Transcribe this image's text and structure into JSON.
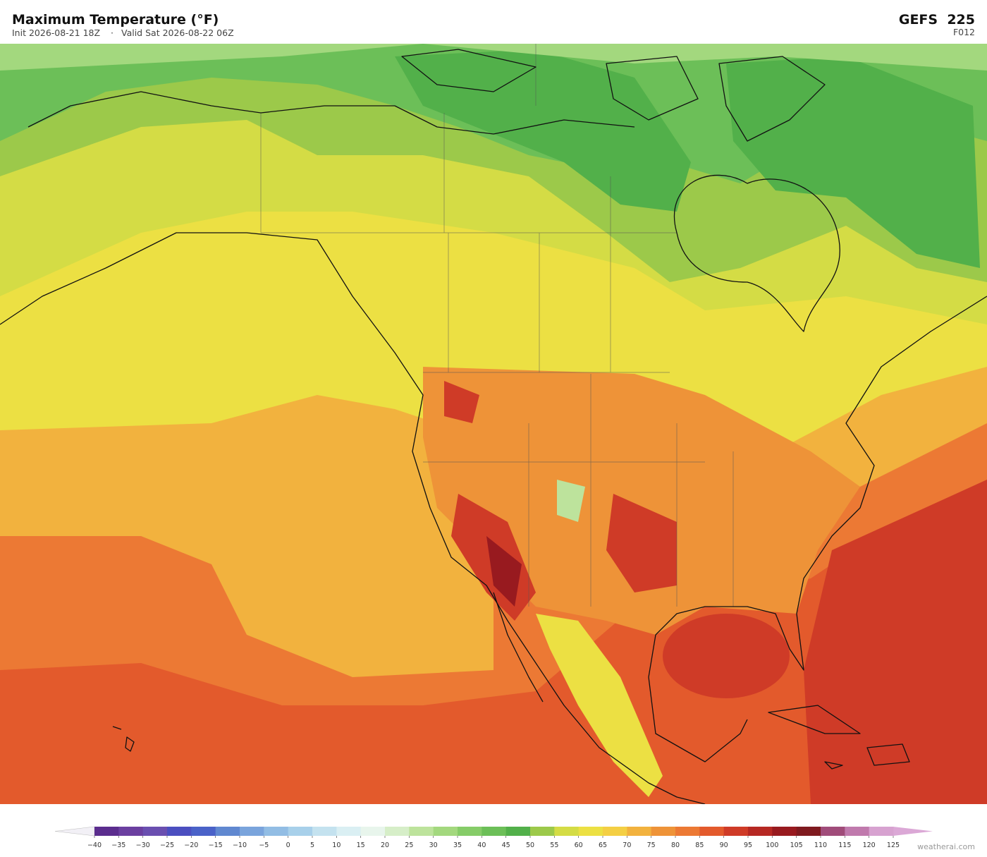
{
  "header": {
    "title": "Maximum Temperature  (°F)",
    "init": "Init 2026-08-21 18Z",
    "separator": "·",
    "valid": "Valid Sat 2026-08-22 06Z",
    "model": "GEFS  225",
    "forecast_hour": "F012"
  },
  "colorbar": {
    "ticks": [
      {
        "value": -40,
        "label": "−40"
      },
      {
        "value": -35,
        "label": "−35"
      },
      {
        "value": -30,
        "label": "−30"
      },
      {
        "value": -25,
        "label": "−25"
      },
      {
        "value": -20,
        "label": "−20"
      },
      {
        "value": -15,
        "label": "−15"
      },
      {
        "value": -10,
        "label": "−10"
      },
      {
        "value": -5,
        "label": "−5"
      },
      0,
      5,
      10,
      15,
      20,
      25,
      30,
      35,
      40,
      45,
      50,
      55,
      60,
      65,
      70,
      75,
      80,
      85,
      90,
      95,
      100,
      105,
      110,
      115,
      120,
      125
    ],
    "colors": [
      "#5b2d8e",
      "#6b3fa0",
      "#6a4fb0",
      "#4b4fc0",
      "#4a62c8",
      "#6088d0",
      "#7aa4dc",
      "#92bde4",
      "#a8d0ea",
      "#c4e2ef",
      "#daeff3",
      "#e8f5ec",
      "#d6eec8",
      "#bde39c",
      "#a3d87e",
      "#86cc68",
      "#6cbf58",
      "#52b04a",
      "#9cc94a",
      "#d4dc45",
      "#ece043",
      "#f4cf44",
      "#f2b23e",
      "#ee9338",
      "#ec7934",
      "#e35a2c",
      "#cf3b27",
      "#b62823",
      "#981a1f",
      "#7f1a1f",
      "#a04c7a",
      "#c07aad",
      "#d7a2d0"
    ],
    "under_color": "#f2f0f6",
    "over_color": "#dba8d6"
  },
  "credit": "weatherai.com"
}
